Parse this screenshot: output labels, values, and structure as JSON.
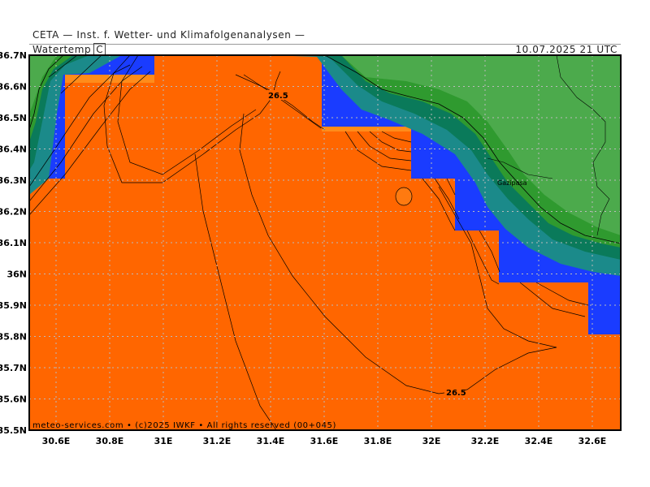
{
  "header": {
    "source": "CETA — Inst. f. Wetter- und Klimafolgenanalysen —",
    "variable": "Watertemp",
    "unit": "C",
    "datetime": "10.07.2025  21  UTC"
  },
  "map": {
    "lon_range": [
      30.5,
      32.7
    ],
    "lat_range": [
      35.5,
      36.7
    ],
    "x_ticks": [
      "30.6E",
      "30.8E",
      "31E",
      "31.2E",
      "31.4E",
      "31.6E",
      "31.8E",
      "32E",
      "32.2E",
      "32.4E",
      "32.6E"
    ],
    "y_ticks": [
      "36.7N",
      "36.6N",
      "36.5N",
      "36.4N",
      "36.3N",
      "36.2N",
      "36.1N",
      "36N",
      "35.9N",
      "35.8N",
      "35.7N",
      "35.6N",
      "35.5N"
    ],
    "contour_labels": [
      {
        "text": "26.5",
        "lon": 31.42,
        "lat": 36.55
      },
      {
        "text": "26.5",
        "lon": 32.08,
        "lat": 35.62
      }
    ],
    "places": [
      {
        "name": "Gazipasa",
        "lon": 32.3,
        "lat": 36.27
      }
    ],
    "grid": true,
    "colors": {
      "sea_main": "#ff6600",
      "sea_warm_edge": "#ff8c1a",
      "coastal_blue": "#1a3cff",
      "teal_1": "#1b8a8a",
      "teal_2": "#0a7a5a",
      "land_dark": "#2f9a2f",
      "land": "#4caa4c",
      "grid": "#bbbbbb"
    }
  },
  "footer": {
    "copyright": "meteo-services.com  •  (c)2025  IWKF  •  All  rights  reserved  (00+045)"
  }
}
